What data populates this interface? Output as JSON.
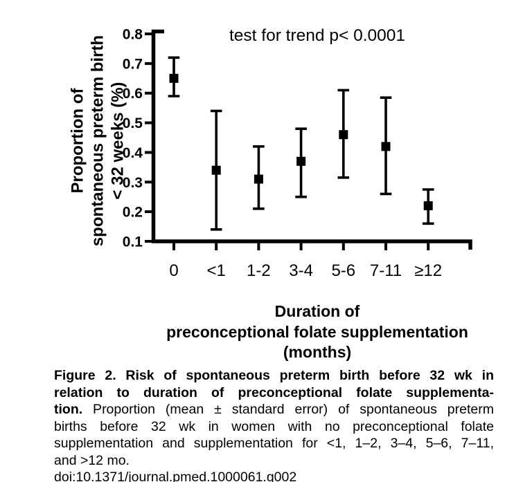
{
  "figure": {
    "annotation": "test for trend p< 0.0001",
    "y_axis_title_lines": [
      "Proportion of",
      "spontaneous preterm birth",
      "< 32 weeks (%)"
    ],
    "x_axis_title_lines": [
      "Duration of",
      "preconceptional folate supplementation",
      "(months)"
    ]
  },
  "chart_data": {
    "type": "scatter",
    "title": "",
    "annotation": "test for trend p< 0.0001",
    "categories": [
      "0",
      "<1",
      "1-2",
      "3-4",
      "5-6",
      "7-11",
      "≥12"
    ],
    "series": [
      {
        "name": "Proportion (mean ± standard error) of spontaneous preterm birth < 32 wk",
        "means": [
          0.65,
          0.34,
          0.31,
          0.37,
          0.46,
          0.42,
          0.22
        ],
        "upper": [
          0.72,
          0.54,
          0.42,
          0.48,
          0.61,
          0.585,
          0.275
        ],
        "lower": [
          0.59,
          0.14,
          0.21,
          0.25,
          0.315,
          0.26,
          0.16
        ]
      }
    ],
    "xlabel": "Duration of preconceptional folate supplementation (months)",
    "ylabel": "Proportion of spontaneous preterm birth < 32 weeks (%)",
    "ylim": [
      0.1,
      0.8
    ],
    "y_ticks": [
      0.8,
      0.7,
      0.6,
      0.5,
      0.4,
      0.3,
      0.2,
      0.1
    ],
    "grid": false,
    "legend_position": "none",
    "marker": "filled-square",
    "error_bars": "mean ± standard error",
    "ink_color": "#000000",
    "background_color": "#ffffff"
  },
  "caption": {
    "lines": [
      {
        "justify": true,
        "segments": [
          {
            "text": "Figure 2. Risk of spontaneous preterm birth before 32 wk in",
            "bold": true
          }
        ]
      },
      {
        "justify": true,
        "segments": [
          {
            "text": "relation to duration of preconceptional folate supplementa-",
            "bold": true
          }
        ]
      },
      {
        "justify": true,
        "segments": [
          {
            "text": "tion.",
            "bold": true
          },
          {
            "text": " Proportion (mean ± standard error) of spontaneous preterm",
            "bold": false
          }
        ]
      },
      {
        "justify": true,
        "segments": [
          {
            "text": "births before 32 wk in women with no preconceptional folate",
            "bold": false
          }
        ]
      },
      {
        "justify": true,
        "segments": [
          {
            "text": "supplementation and supplementation for <1, 1–2, 3–4, 5–6, 7–11,",
            "bold": false
          }
        ]
      },
      {
        "justify": false,
        "segments": [
          {
            "text": "and >12 mo.",
            "bold": false
          }
        ]
      }
    ],
    "doi": "doi:10.1371/journal.pmed.1000061.g002"
  }
}
